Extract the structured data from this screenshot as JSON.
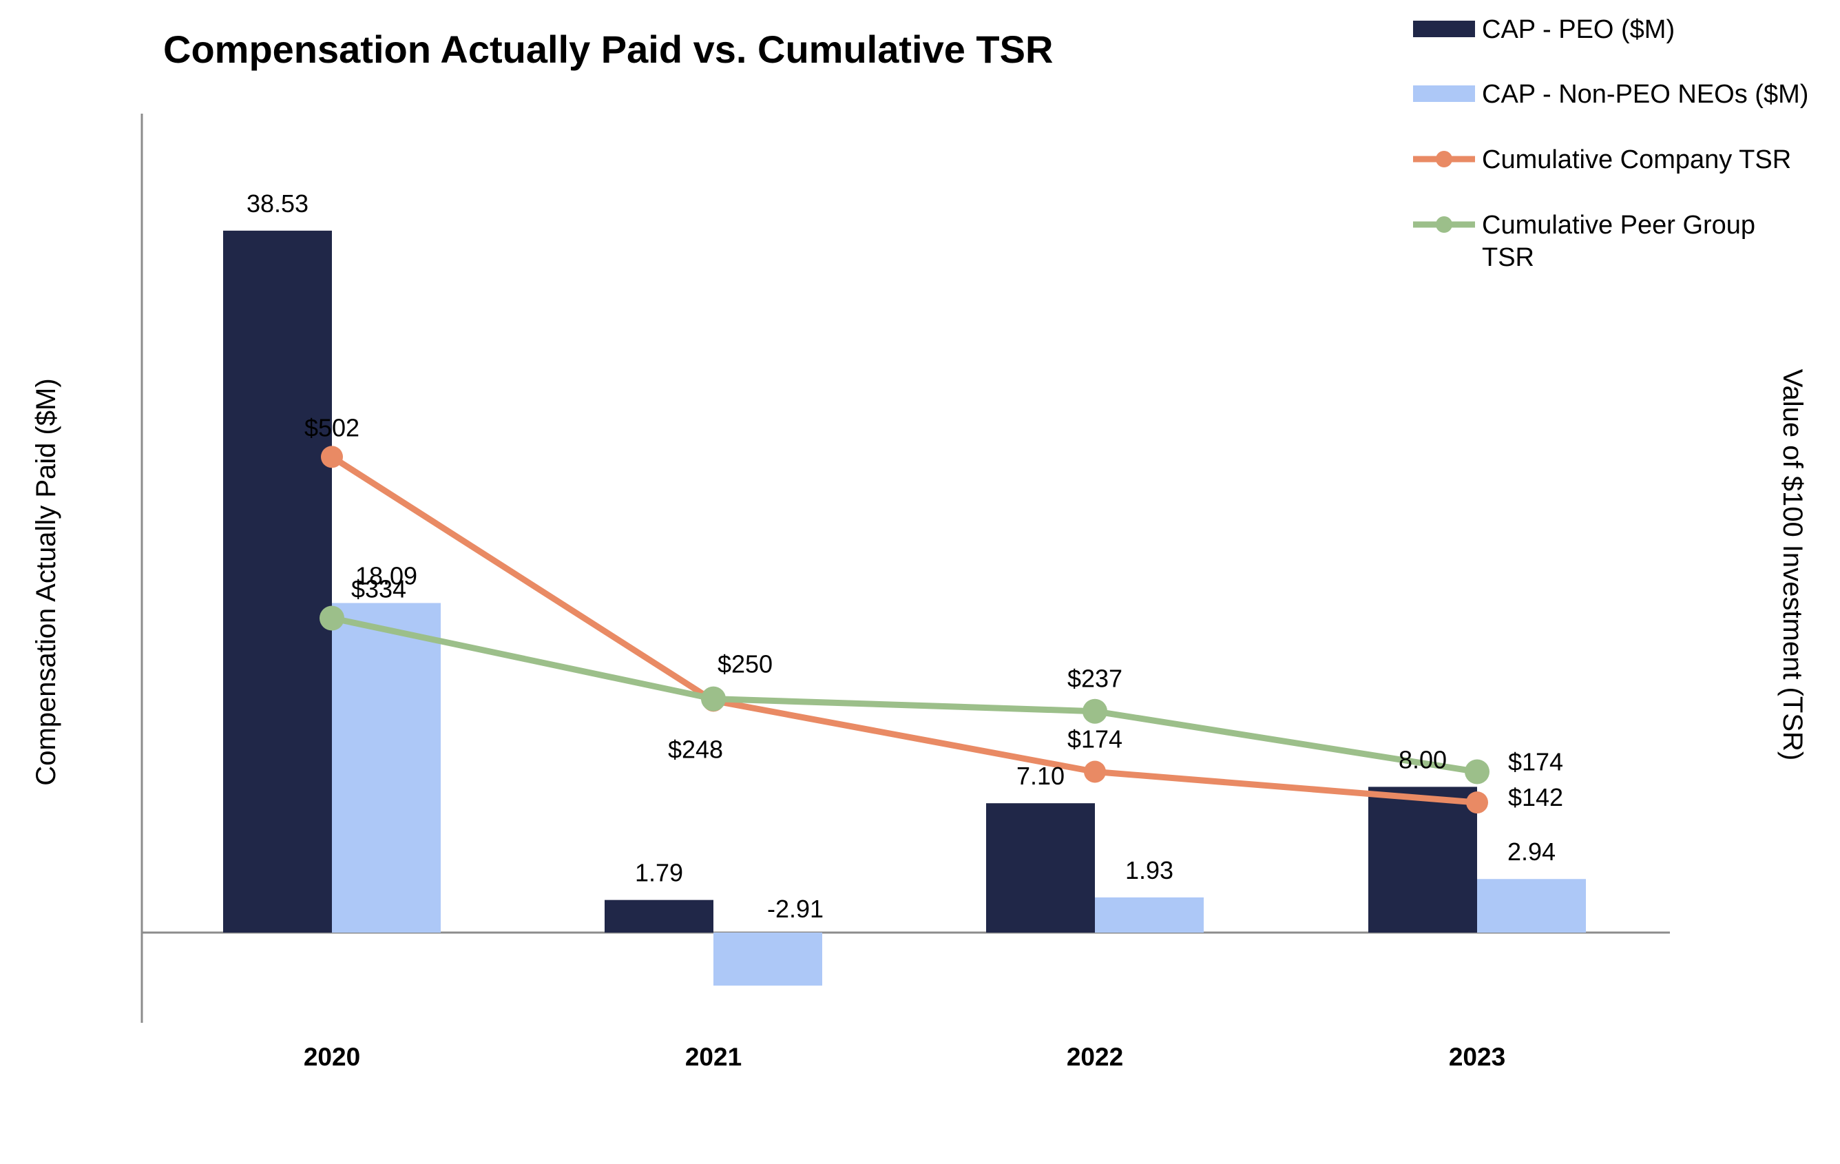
{
  "chart_data": {
    "type": "bar",
    "title": "Compensation Actually Paid vs. Cumulative TSR",
    "xlabel": "",
    "ylabel": "Compensation Actually Paid ($M)",
    "y2label": "Value of $100 Investment (TSR)",
    "categories": [
      "2020",
      "2021",
      "2022",
      "2023"
    ],
    "ylim": [
      -5,
      44
    ],
    "y2lim": [
      0,
      560
    ],
    "grid": false,
    "legend_position": "top-right",
    "series": [
      {
        "name": "CAP - PEO ($M)",
        "kind": "bar",
        "axis": "left",
        "color": "#202748",
        "values": [
          38.53,
          1.79,
          7.1,
          8.0
        ],
        "labels": [
          "38.53",
          "1.79",
          "7.10",
          "8.00"
        ]
      },
      {
        "name": "CAP - Non-PEO NEOs ($M)",
        "kind": "bar",
        "axis": "left",
        "color": "#adc8f7",
        "values": [
          18.09,
          -2.91,
          1.93,
          2.94
        ],
        "labels": [
          "18.09",
          "-2.91",
          "1.93",
          "2.94"
        ]
      },
      {
        "name": "Cumulative Company TSR",
        "kind": "line",
        "axis": "right",
        "color": "#e98a64",
        "values": [
          502,
          248,
          174,
          142
        ],
        "labels": [
          "$502",
          "$248",
          "$174",
          "$142"
        ]
      },
      {
        "name": "Cumulative Peer Group TSR",
        "kind": "line",
        "axis": "right",
        "color": "#9cbf8a",
        "values": [
          334,
          250,
          237,
          174
        ],
        "labels": [
          "$334",
          "$250",
          "$237",
          "$174"
        ]
      }
    ]
  }
}
